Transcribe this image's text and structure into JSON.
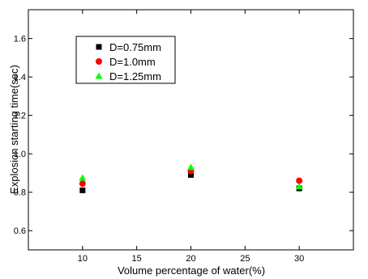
{
  "chart_data": {
    "type": "scatter",
    "title": "",
    "xlabel": "Volume percentage of water(%)",
    "ylabel": "Explosion starting time(sec)",
    "xlim": [
      5,
      35
    ],
    "ylim": [
      0.5,
      1.75
    ],
    "x_ticks": [
      10,
      15,
      20,
      25,
      30
    ],
    "x_tick_labels": [
      "10",
      "15",
      "20",
      "25",
      "30"
    ],
    "y_ticks": [
      0.6,
      0.8,
      1.0,
      1.2,
      1.4,
      1.6
    ],
    "y_tick_labels": [
      "0.6",
      "0.8",
      "1.0",
      "1.2",
      "1.4",
      "1.6"
    ],
    "grid": false,
    "legend_position": "top-left",
    "series": [
      {
        "name": "D=0.75mm",
        "marker": "square",
        "color": "#000000",
        "x": [
          10,
          20,
          30
        ],
        "y": [
          0.81,
          0.89,
          0.82
        ]
      },
      {
        "name": "D=1.0mm",
        "marker": "circle",
        "color": "#ff0000",
        "x": [
          10,
          20,
          30
        ],
        "y": [
          0.845,
          0.91,
          0.86
        ]
      },
      {
        "name": "D=1.25mm",
        "marker": "triangle",
        "color": "#00ff00",
        "x": [
          10,
          20,
          30
        ],
        "y": [
          0.875,
          0.93,
          0.83
        ]
      }
    ]
  }
}
